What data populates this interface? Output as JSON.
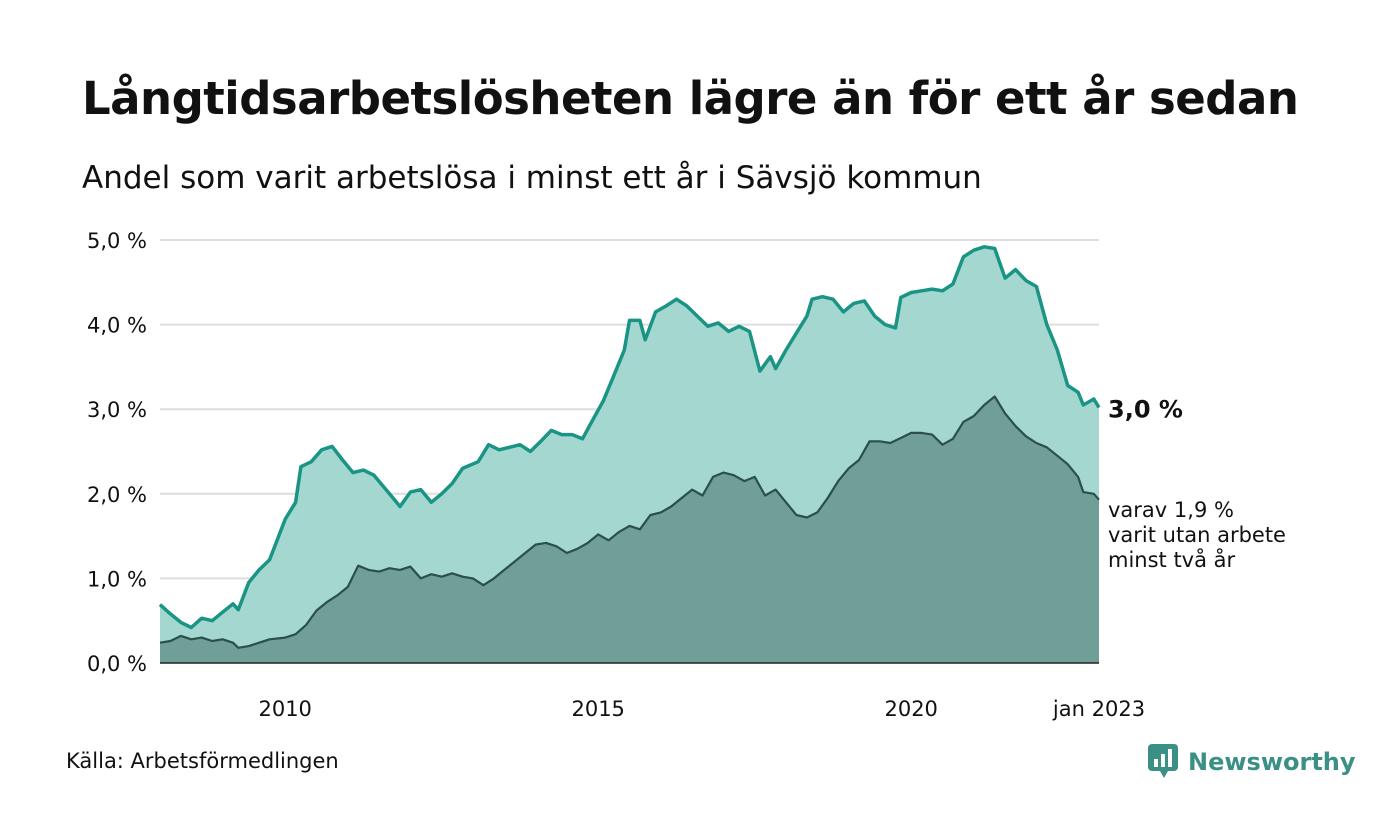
{
  "title": "Långtidsarbetslösheten lägre än för ett år sedan",
  "subtitle": "Andel som varit arbetslösa i minst ett år i Sävsjö kommun",
  "source": "Källa: Arbetsförmedlingen",
  "brand": "Newsworthy",
  "colors": {
    "area_total": "#a5d7d1",
    "line_total": "#1a9484",
    "area_long": "#6f9f97",
    "line_long": "#2b4f4a",
    "grid": "#dddddd",
    "brand": "#3b9085"
  },
  "chart_data": {
    "type": "area",
    "x_axis": {
      "type": "date",
      "range": [
        "2008-01",
        "2023-01"
      ],
      "ticks": [
        "2010",
        "2015",
        "2020",
        "jan 2023"
      ]
    },
    "y_axis": {
      "range": [
        0,
        5
      ],
      "ticks": [
        "0,0 %",
        "1,0 %",
        "2,0 %",
        "3,0 %",
        "4,0 %",
        "5,0 %"
      ],
      "unit": "%"
    },
    "grid": true,
    "end_labels": {
      "total": "3,0 %",
      "long": [
        "varav 1,9 %",
        "varit utan arbete",
        "minst två år"
      ]
    },
    "series": [
      {
        "key": "total",
        "points": [
          [
            "2008-01",
            0.69
          ],
          [
            "2008-03",
            0.58
          ],
          [
            "2008-05",
            0.48
          ],
          [
            "2008-07",
            0.42
          ],
          [
            "2008-09",
            0.53
          ],
          [
            "2008-11",
            0.5
          ],
          [
            "2009-01",
            0.6
          ],
          [
            "2009-03",
            0.7
          ],
          [
            "2009-04",
            0.63
          ],
          [
            "2009-06",
            0.95
          ],
          [
            "2009-08",
            1.1
          ],
          [
            "2009-10",
            1.22
          ],
          [
            "2010-01",
            1.7
          ],
          [
            "2010-03",
            1.9
          ],
          [
            "2010-04",
            2.32
          ],
          [
            "2010-06",
            2.38
          ],
          [
            "2010-08",
            2.52
          ],
          [
            "2010-10",
            2.56
          ],
          [
            "2010-12",
            2.4
          ],
          [
            "2011-02",
            2.25
          ],
          [
            "2011-04",
            2.28
          ],
          [
            "2011-06",
            2.22
          ],
          [
            "2011-09",
            2.0
          ],
          [
            "2011-11",
            1.85
          ],
          [
            "2012-01",
            2.02
          ],
          [
            "2012-03",
            2.05
          ],
          [
            "2012-05",
            1.9
          ],
          [
            "2012-07",
            2.0
          ],
          [
            "2012-09",
            2.12
          ],
          [
            "2012-11",
            2.3
          ],
          [
            "2013-02",
            2.38
          ],
          [
            "2013-04",
            2.58
          ],
          [
            "2013-06",
            2.52
          ],
          [
            "2013-08",
            2.55
          ],
          [
            "2013-10",
            2.58
          ],
          [
            "2013-12",
            2.5
          ],
          [
            "2014-02",
            2.62
          ],
          [
            "2014-04",
            2.75
          ],
          [
            "2014-06",
            2.7
          ],
          [
            "2014-08",
            2.7
          ],
          [
            "2014-10",
            2.65
          ],
          [
            "2014-12",
            2.88
          ],
          [
            "2015-02",
            3.1
          ],
          [
            "2015-04",
            3.4
          ],
          [
            "2015-06",
            3.7
          ],
          [
            "2015-07",
            4.05
          ],
          [
            "2015-09",
            4.05
          ],
          [
            "2015-10",
            3.82
          ],
          [
            "2015-12",
            4.15
          ],
          [
            "2016-02",
            4.22
          ],
          [
            "2016-04",
            4.3
          ],
          [
            "2016-06",
            4.22
          ],
          [
            "2016-08",
            4.1
          ],
          [
            "2016-10",
            3.98
          ],
          [
            "2016-12",
            4.02
          ],
          [
            "2017-02",
            3.92
          ],
          [
            "2017-04",
            3.98
          ],
          [
            "2017-06",
            3.92
          ],
          [
            "2017-08",
            3.45
          ],
          [
            "2017-10",
            3.62
          ],
          [
            "2017-11",
            3.48
          ],
          [
            "2018-01",
            3.7
          ],
          [
            "2018-03",
            3.9
          ],
          [
            "2018-05",
            4.1
          ],
          [
            "2018-06",
            4.3
          ],
          [
            "2018-08",
            4.33
          ],
          [
            "2018-10",
            4.3
          ],
          [
            "2018-12",
            4.15
          ],
          [
            "2019-02",
            4.25
          ],
          [
            "2019-04",
            4.28
          ],
          [
            "2019-06",
            4.1
          ],
          [
            "2019-08",
            4.0
          ],
          [
            "2019-10",
            3.96
          ],
          [
            "2019-11",
            4.32
          ],
          [
            "2020-01",
            4.38
          ],
          [
            "2020-03",
            4.4
          ],
          [
            "2020-05",
            4.42
          ],
          [
            "2020-07",
            4.4
          ],
          [
            "2020-09",
            4.48
          ],
          [
            "2020-11",
            4.8
          ],
          [
            "2021-01",
            4.88
          ],
          [
            "2021-03",
            4.92
          ],
          [
            "2021-05",
            4.9
          ],
          [
            "2021-07",
            4.55
          ],
          [
            "2021-09",
            4.65
          ],
          [
            "2021-11",
            4.52
          ],
          [
            "2022-01",
            4.45
          ],
          [
            "2022-03",
            4.0
          ],
          [
            "2022-05",
            3.7
          ],
          [
            "2022-07",
            3.28
          ],
          [
            "2022-09",
            3.2
          ],
          [
            "2022-10",
            3.05
          ],
          [
            "2022-12",
            3.12
          ],
          [
            "2023-01",
            3.02
          ]
        ]
      },
      {
        "key": "long",
        "points": [
          [
            "2008-01",
            0.24
          ],
          [
            "2008-03",
            0.26
          ],
          [
            "2008-05",
            0.32
          ],
          [
            "2008-07",
            0.28
          ],
          [
            "2008-09",
            0.3
          ],
          [
            "2008-11",
            0.26
          ],
          [
            "2009-01",
            0.28
          ],
          [
            "2009-03",
            0.24
          ],
          [
            "2009-04",
            0.18
          ],
          [
            "2009-06",
            0.2
          ],
          [
            "2009-08",
            0.24
          ],
          [
            "2009-10",
            0.28
          ],
          [
            "2010-01",
            0.3
          ],
          [
            "2010-03",
            0.34
          ],
          [
            "2010-05",
            0.45
          ],
          [
            "2010-07",
            0.62
          ],
          [
            "2010-09",
            0.72
          ],
          [
            "2010-11",
            0.8
          ],
          [
            "2011-01",
            0.9
          ],
          [
            "2011-03",
            1.15
          ],
          [
            "2011-05",
            1.1
          ],
          [
            "2011-07",
            1.08
          ],
          [
            "2011-09",
            1.12
          ],
          [
            "2011-11",
            1.1
          ],
          [
            "2012-01",
            1.14
          ],
          [
            "2012-03",
            1.0
          ],
          [
            "2012-05",
            1.05
          ],
          [
            "2012-07",
            1.02
          ],
          [
            "2012-09",
            1.06
          ],
          [
            "2012-11",
            1.02
          ],
          [
            "2013-01",
            1.0
          ],
          [
            "2013-03",
            0.92
          ],
          [
            "2013-05",
            1.0
          ],
          [
            "2013-07",
            1.1
          ],
          [
            "2013-09",
            1.2
          ],
          [
            "2013-11",
            1.3
          ],
          [
            "2014-01",
            1.4
          ],
          [
            "2014-03",
            1.42
          ],
          [
            "2014-05",
            1.38
          ],
          [
            "2014-07",
            1.3
          ],
          [
            "2014-09",
            1.35
          ],
          [
            "2014-11",
            1.42
          ],
          [
            "2015-01",
            1.52
          ],
          [
            "2015-03",
            1.45
          ],
          [
            "2015-05",
            1.55
          ],
          [
            "2015-07",
            1.62
          ],
          [
            "2015-09",
            1.58
          ],
          [
            "2015-11",
            1.75
          ],
          [
            "2016-01",
            1.78
          ],
          [
            "2016-03",
            1.85
          ],
          [
            "2016-05",
            1.95
          ],
          [
            "2016-07",
            2.05
          ],
          [
            "2016-09",
            1.98
          ],
          [
            "2016-11",
            2.2
          ],
          [
            "2017-01",
            2.25
          ],
          [
            "2017-03",
            2.22
          ],
          [
            "2017-05",
            2.15
          ],
          [
            "2017-07",
            2.2
          ],
          [
            "2017-09",
            1.98
          ],
          [
            "2017-11",
            2.05
          ],
          [
            "2018-01",
            1.9
          ],
          [
            "2018-03",
            1.75
          ],
          [
            "2018-05",
            1.72
          ],
          [
            "2018-07",
            1.78
          ],
          [
            "2018-09",
            1.95
          ],
          [
            "2018-11",
            2.15
          ],
          [
            "2019-01",
            2.3
          ],
          [
            "2019-03",
            2.4
          ],
          [
            "2019-05",
            2.62
          ],
          [
            "2019-07",
            2.62
          ],
          [
            "2019-09",
            2.6
          ],
          [
            "2019-11",
            2.66
          ],
          [
            "2020-01",
            2.72
          ],
          [
            "2020-03",
            2.72
          ],
          [
            "2020-05",
            2.7
          ],
          [
            "2020-07",
            2.58
          ],
          [
            "2020-09",
            2.65
          ],
          [
            "2020-11",
            2.85
          ],
          [
            "2021-01",
            2.92
          ],
          [
            "2021-03",
            3.05
          ],
          [
            "2021-05",
            3.15
          ],
          [
            "2021-07",
            2.95
          ],
          [
            "2021-09",
            2.8
          ],
          [
            "2021-11",
            2.68
          ],
          [
            "2022-01",
            2.6
          ],
          [
            "2022-03",
            2.55
          ],
          [
            "2022-05",
            2.45
          ],
          [
            "2022-07",
            2.35
          ],
          [
            "2022-09",
            2.2
          ],
          [
            "2022-10",
            2.02
          ],
          [
            "2022-12",
            2.0
          ],
          [
            "2023-01",
            1.93
          ]
        ]
      }
    ]
  }
}
